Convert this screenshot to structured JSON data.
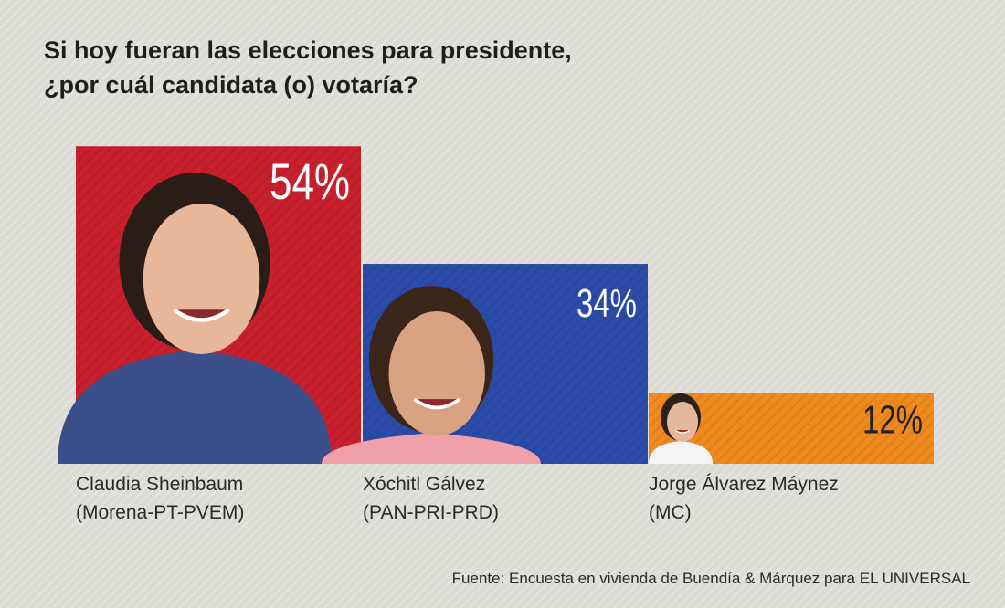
{
  "chart_data": {
    "type": "bar",
    "title": "Si hoy fueran las elecciones para presidente, ¿por cuál candidata (o) votaría?",
    "title_lines": [
      "Si hoy fueran las elecciones para presidente,",
      "¿por cuál candidata (o) votaría?"
    ],
    "categories": [
      "Claudia Sheinbaum",
      "Xóchitl Gálvez",
      "Jorge Álvarez Máynez"
    ],
    "parties": [
      "(Morena-PT-PVEM)",
      "(PAN-PRI-PRD)",
      "(MC)"
    ],
    "values": [
      54,
      34,
      12
    ],
    "data_labels": [
      "54%",
      "34%",
      "12%"
    ],
    "colors": [
      "#c8202c",
      "#2b4ba8",
      "#f08a1e"
    ],
    "label_colors": [
      "#ffffff",
      "#ffffff",
      "#222222"
    ],
    "unit": "%",
    "grid": false,
    "legend": "none",
    "source": "Fuente: Encuesta en vivienda de Buendía & Márquez para EL UNIVERSAL"
  }
}
